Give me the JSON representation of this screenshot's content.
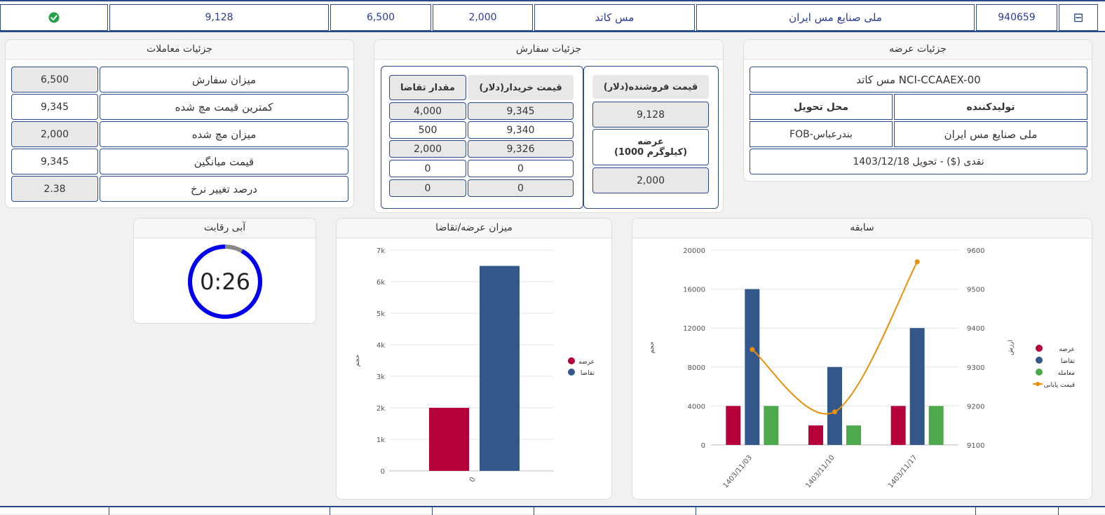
{
  "top_row": {
    "collapse_symbol": "⊟",
    "code": "940659",
    "producer": "ملی صنایع مس ایران",
    "commodity": "مس کاتد",
    "quantity": "2,000",
    "demand": "6,500",
    "price": "9,128",
    "status_icon": "check-circle-icon"
  },
  "offer_details": {
    "title": "جزئیات عرضه",
    "product": "مس کاتد NCI-CCAAEX-00",
    "producer_header": "تولیدکننده",
    "delivery_header": "محل تحویل",
    "producer_value": "ملی صنایع مس ایران",
    "delivery_value": "FOB-بندرعباس",
    "payment": "نقدی ($) - تحویل 1403/12/18"
  },
  "order_details": {
    "title": "جزئیات سفارش",
    "seller_price_header": "قیمت فروشنده(دلار)",
    "seller_price": "9,128",
    "offer_header_line1": "عرضه",
    "offer_header_line2": "(1000 کیلوگرم)",
    "offer_value": "2,000",
    "buyer_price_header": "قیمت خریدار(دلار)",
    "demand_qty_header": "مقدار تقاضا",
    "rows": [
      {
        "price": "9,345",
        "qty": "4,000"
      },
      {
        "price": "9,340",
        "qty": "500"
      },
      {
        "price": "9,326",
        "qty": "2,000"
      },
      {
        "price": "0",
        "qty": "0"
      },
      {
        "price": "0",
        "qty": "0"
      }
    ]
  },
  "trade_details": {
    "title": "جزئیات معاملات",
    "rows": [
      {
        "label": "میزان سفارش",
        "value": "6,500"
      },
      {
        "label": "کمترین قیمت مچ شده",
        "value": "9,345"
      },
      {
        "label": "میزان مچ شده",
        "value": "2,000"
      },
      {
        "label": "قیمت میانگین",
        "value": "9,345"
      },
      {
        "label": "درصد تغییر نرخ",
        "value": "2.38"
      }
    ]
  },
  "competition": {
    "title": "آبی رقابت",
    "timer": "0:26",
    "progress_fraction": 0.92,
    "ring_color": "#0000ee",
    "rest_color": "#888888"
  },
  "chart_data": [
    {
      "type": "bar",
      "title": "میزان عرضه/تقاضا",
      "ylabel": "حجم",
      "categories": [
        "0"
      ],
      "ylim": [
        0,
        7000
      ],
      "yticks": [
        "0",
        "1k",
        "2k",
        "3k",
        "4k",
        "5k",
        "6k",
        "7k"
      ],
      "series": [
        {
          "name": "عرضه",
          "values": [
            2000
          ],
          "color": "#b5003a"
        },
        {
          "name": "تقاضا",
          "values": [
            6500
          ],
          "color": "#34578a"
        }
      ],
      "grid": true,
      "legend": "right"
    },
    {
      "type": "bar",
      "title": "سابقه",
      "ylabel": "حجم",
      "y2label": "ارزش",
      "categories": [
        "1403/11/03",
        "1403/11/10",
        "1403/11/17"
      ],
      "ylim": [
        0,
        20000
      ],
      "yticks": [
        "0",
        "4000",
        "8000",
        "12000",
        "16000",
        "20000"
      ],
      "y2lim": [
        9100,
        9600
      ],
      "y2ticks": [
        "9100",
        "9200",
        "9300",
        "9400",
        "9500",
        "9600"
      ],
      "series": [
        {
          "name": "عرضه",
          "values": [
            4000,
            2000,
            4000
          ],
          "color": "#b5003a"
        },
        {
          "name": "تقاضا",
          "values": [
            16000,
            8000,
            12000
          ],
          "color": "#34578a"
        },
        {
          "name": "معامله",
          "values": [
            4000,
            2000,
            4000
          ],
          "color": "#4caa4c"
        },
        {
          "name": "قیمت پایانی",
          "type": "line",
          "axis": "right",
          "values": [
            9345,
            9185,
            9570
          ],
          "color": "#e8900a"
        }
      ],
      "grid": true,
      "legend": "right"
    }
  ]
}
